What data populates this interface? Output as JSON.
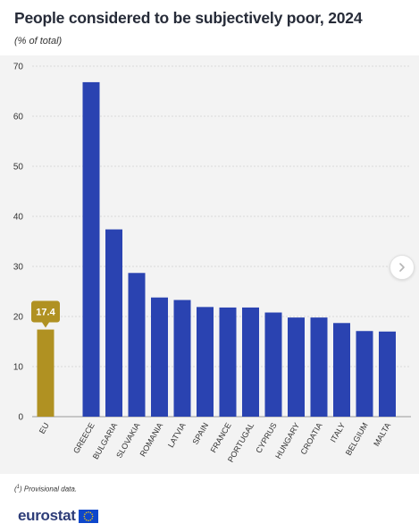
{
  "header": {
    "title": "People considered to be subjectively poor, 2024",
    "subtitle": "(% of total)"
  },
  "footer": {
    "footnote_marker": "1",
    "footnote_text": "Provisional data.",
    "logo_text": "eurostat",
    "logo_flag": "eu-flag-icon"
  },
  "navigation": {
    "next_icon": "chevron-right-icon"
  },
  "colors": {
    "eu_bar": "#b09122",
    "country_bar": "#2a43b1",
    "grid": "#d9d9d9",
    "callout": "#b09122",
    "axis_text": "#333333",
    "panel_background": "#f3f3f3",
    "brand_text": "#2d3c78",
    "flag_blue": "#0e47cb",
    "flag_stars": "#ffcc00"
  },
  "chart_data": {
    "type": "bar",
    "categories": [
      "EU",
      "GREECE",
      "BULGARIA",
      "SLOVAKIA",
      "ROMANIA",
      "LATVIA",
      "SPAIN",
      "FRANCE",
      "PORTUGAL",
      "CYPRUS",
      "HUNGARY",
      "CROATIA",
      "ITALY",
      "BELGIUM",
      "MALTA"
    ],
    "values": [
      17.4,
      66.8,
      37.4,
      28.7,
      23.8,
      23.3,
      21.9,
      21.8,
      21.8,
      20.8,
      19.8,
      19.8,
      18.7,
      17.1,
      17.0
    ],
    "highlight": {
      "category": "EU",
      "label": "17.4"
    },
    "ylim": [
      0,
      70
    ],
    "yticks": [
      "0",
      "10",
      "20",
      "30",
      "40",
      "50",
      "60",
      "70"
    ],
    "grid": true,
    "legend": "none"
  }
}
